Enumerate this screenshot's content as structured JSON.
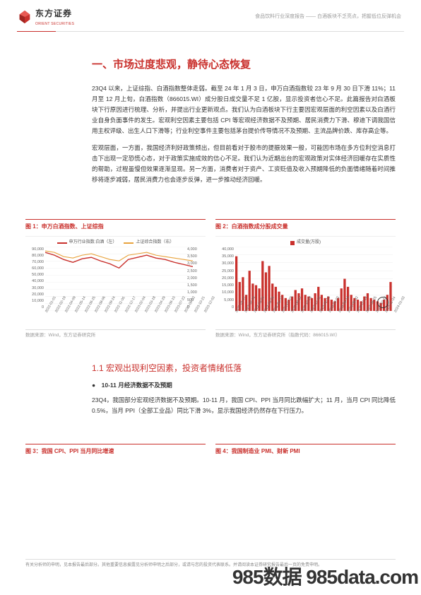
{
  "header": {
    "logo_cn": "东方证券",
    "logo_en": "ORIENT SECURITIES",
    "right_text": "食品饮料行业深度报告 —— 白酒板块不乏亮点，把握低位反弹机会"
  },
  "colors": {
    "accent": "#c9302c",
    "grey_line": "#dddddd",
    "grid": "#eeeeee",
    "text": "#333333",
    "muted": "#999999",
    "orange": "#e8a33d"
  },
  "section_title": "一、市场过度悲观，静待心态恢复",
  "para1": "23Q4 以来，上证综指、白酒指数整体走弱。截至 24 年 1 月 3 日，申万白酒指数较 23 年 9 月 30 日下滑 11%；11 月至 12 月上旬，白酒指数（866015.WI）成分股日成交量不足 1 亿股，显示投资者信心不足。此篇报告对白酒板块下行原因进行梳理、分析，并提出行业更新观点。我们认为白酒板块下行主要因宏观层面的利空因素以及白酒行业自身负面事件的发生。宏观利空因素主要包括 CPI 等宏观经济数据不及预期、居民消费力下滑、穆迪下调我国信用主权评级、出生人口下滑等；行业利空事件主要包括茅台提价传导情况不及预期、主流品牌价跌、库存高企等。",
  "para2": "宏观层面，一方面，我国经济利好政策频出，但目前看对于股市的提振效果一般，可能因市场在多方位利空消息打击下出现一定恐慌心态，对于政策实施成效的信心不足。我们认为近期出台的宏观政策对实体经济回暖存在实质性的帮助，过程虽慢但效果逐渐显现。另一方面，消费者对于资产、工资贬值及收入预期降低的负面情绪随着时间推移将逐步减弱，居民消费力也会逐步反弹，进一步推动经济回暖。",
  "chart1": {
    "caption": "图 1：申万白酒指数、上证综指",
    "legend_a": "申万行业指数:白酒（左）",
    "legend_b": "上证综合指数（右）",
    "type": "line",
    "y_left": [
      "90,000",
      "80,000",
      "70,000",
      "60,000",
      "50,000",
      "40,000",
      "30,000",
      "20,000",
      "10,000",
      "0"
    ],
    "y_right": [
      "4,000",
      "3,500",
      "3,000",
      "2,500",
      "2,000",
      "1,500",
      "1,000",
      "500",
      "0"
    ],
    "x_ticks": [
      "2022-01-01",
      "2022-02-19",
      "2022-04-09",
      "2022-05-14",
      "2022-06-25",
      "2022-08-06",
      "2022-09-24",
      "2022-11-05",
      "2022-12-17",
      "2023-02-04",
      "2023-03-18",
      "2023-04-29",
      "2023-06-10",
      "2023-07-22",
      "2023-09-02",
      "2023-10-21",
      "2023-12-02"
    ],
    "series_a_color": "#c9302c",
    "series_b_color": "#e8a33d",
    "series_a": [
      82,
      78,
      72,
      68,
      73,
      75,
      70,
      66,
      60,
      72,
      75,
      78,
      74,
      72,
      68,
      65,
      62
    ],
    "series_b": [
      84,
      82,
      76,
      74,
      78,
      80,
      76,
      72,
      70,
      78,
      80,
      82,
      78,
      76,
      74,
      72,
      70
    ],
    "source": "数据来源：Wind，东方证券研究所"
  },
  "chart2": {
    "caption": "图 2：白酒指数成分股成交量",
    "legend": "成交量(万股)",
    "type": "bar",
    "y_left": [
      "40,000",
      "35,000",
      "30,000",
      "25,000",
      "20,000",
      "15,000",
      "10,000",
      "5,000",
      "0"
    ],
    "x_ticks": [
      "2022-01-07",
      "2022-02-18",
      "2022-03-02",
      "2022-05-06",
      "2022-06-17",
      "2022-07-29",
      "2022-09-02",
      "2022-10-28",
      "2022-12-02",
      "2023-01-13",
      "2023-03-03",
      "2023-04-14",
      "2023-06-02",
      "2023-07-14",
      "2023-08-25",
      "2023-10-13",
      "2023-11-24",
      "2024-01-02"
    ],
    "bar_color": "#c9302c",
    "values": [
      34,
      18,
      21,
      10,
      25,
      17,
      16,
      14,
      31,
      24,
      28,
      17,
      15,
      12,
      10,
      8,
      7,
      9,
      13,
      11,
      14,
      10,
      9,
      8,
      11,
      15,
      10,
      8,
      9,
      7,
      6,
      8,
      14,
      20,
      15,
      10,
      8,
      7,
      6,
      9,
      11,
      8,
      7,
      6,
      5,
      7,
      10,
      18
    ],
    "max": 40,
    "circle_annotation": true,
    "source": "数据来源：Wind，东方证券研究所（指数代码：866015.WI）"
  },
  "subsection_title": "1.1 宏观出现利空因素，投资者情绪低落",
  "bullet_title": "10-11 月经济数据不及预期",
  "para3": "23Q4，我国部分宏观经济数据不及预期。10-11 月，我国 CPI、PPI 当月同比跌幅扩大；11 月，当月 CPI 同比降低 0.5%，当月 PPI（全部工业品）同比下滑 3%，显示我国经济仍然存在下行压力。",
  "chart3_caption": "图 3：我国 CPI、PPI 当月同比增速",
  "chart4_caption": "图 4：我国制造业 PMI、财新 PMI",
  "footer": "有关分析师的申明，见本报告最后部分。其他重要信息披露见分析师申明之后部分，或请与您的投资代表联系。并请阅读本证券研究报告最后一页的免责申明。",
  "watermark": "985数据  985data.com"
}
